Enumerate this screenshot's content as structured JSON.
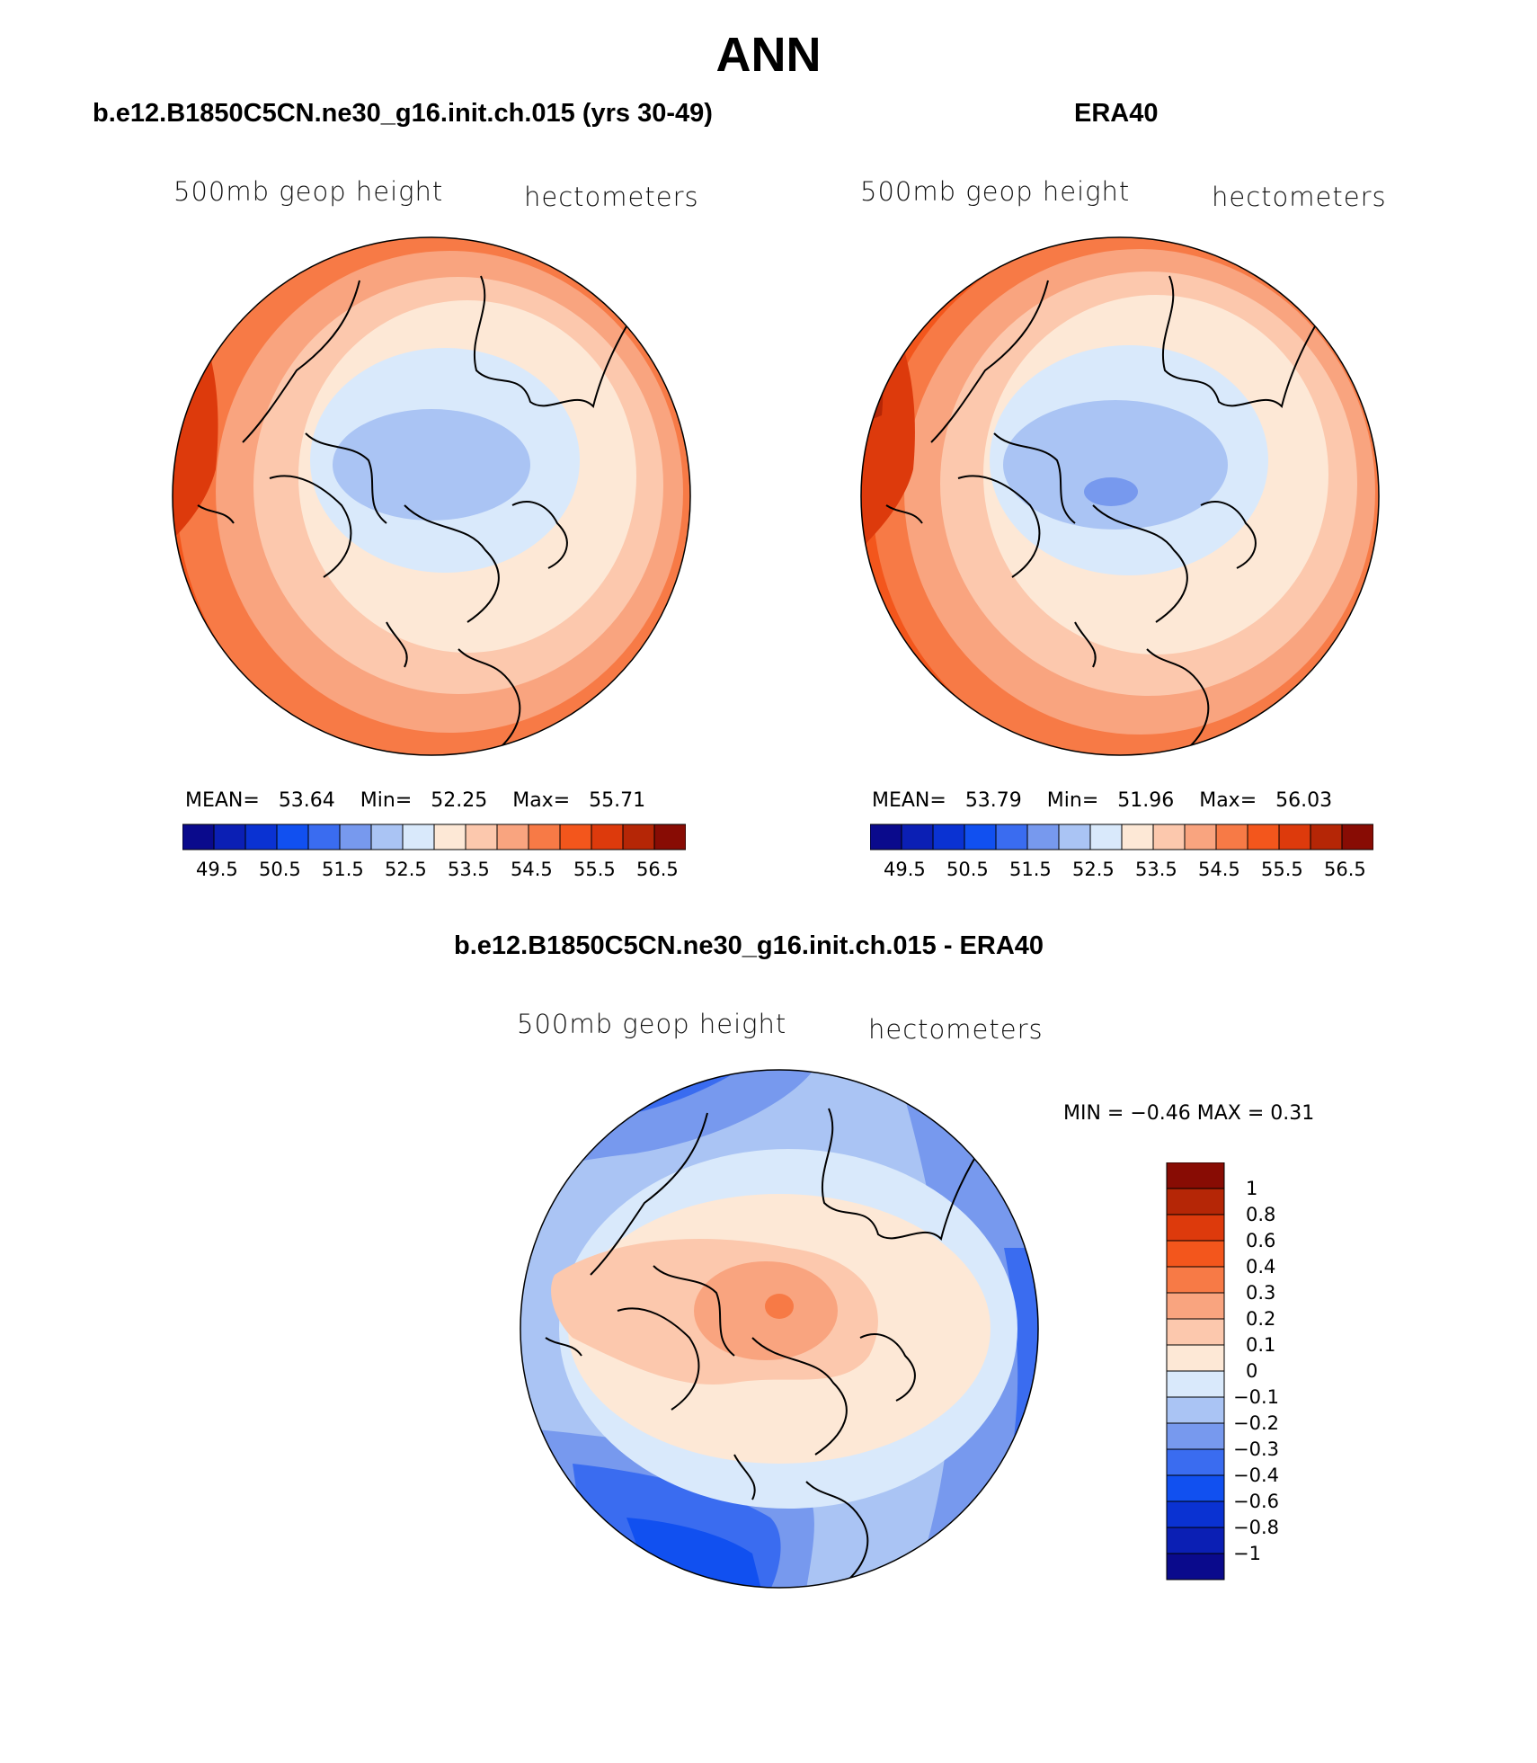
{
  "figure": {
    "title": "ANN"
  },
  "panels": {
    "model": {
      "title": "b.e12.B1850C5CN.ne30_g16.init.ch.015 (yrs 30-49)",
      "var_label": "500mb geop height",
      "units": "hectometers",
      "stats": {
        "mean_label": "MEAN=",
        "mean": "53.64",
        "min_label": "Min=",
        "min": "52.25",
        "max_label": "Max=",
        "max": "55.71"
      }
    },
    "obs": {
      "title": "ERA40",
      "var_label": "500mb geop height",
      "units": "hectometers",
      "stats": {
        "mean_label": "MEAN=",
        "mean": "53.79",
        "min_label": "Min=",
        "min": "51.96",
        "max_label": "Max=",
        "max": "56.03"
      }
    },
    "diff": {
      "title": "b.e12.B1850C5CN.ne30_g16.init.ch.015 - ERA40",
      "var_label": "500mb geop height",
      "units": "hectometers",
      "range_text": "MIN =   −0.46 MAX =    0.31"
    }
  },
  "colorbars": {
    "field": {
      "colors": [
        "#0a0a8c",
        "#0b1fb4",
        "#0a32d2",
        "#1150f0",
        "#3a6cf0",
        "#7799ee",
        "#aac4f4",
        "#d9e9fb",
        "#fde8d6",
        "#fcc8ad",
        "#f9a47f",
        "#f77a46",
        "#f3561c",
        "#dd3a0c",
        "#b52606",
        "#880c04"
      ],
      "labels": [
        "49.5",
        "50.5",
        "51.5",
        "52.5",
        "53.5",
        "54.5",
        "55.5",
        "56.5"
      ]
    },
    "diff": {
      "colors": [
        "#880c04",
        "#b52606",
        "#dd3a0c",
        "#f3561c",
        "#f77a46",
        "#f9a47f",
        "#fcc8ad",
        "#fde8d6",
        "#d9e9fb",
        "#aac4f4",
        "#7799ee",
        "#3a6cf0",
        "#1150f0",
        "#0a32d2",
        "#0b1fb4",
        "#0a0a8c"
      ],
      "labels": [
        "1",
        "0.8",
        "0.6",
        "0.4",
        "0.3",
        "0.2",
        "0.1",
        "0",
        "−0.1",
        "−0.2",
        "−0.3",
        "−0.4",
        "−0.6",
        "−0.8",
        "−1"
      ]
    }
  }
}
